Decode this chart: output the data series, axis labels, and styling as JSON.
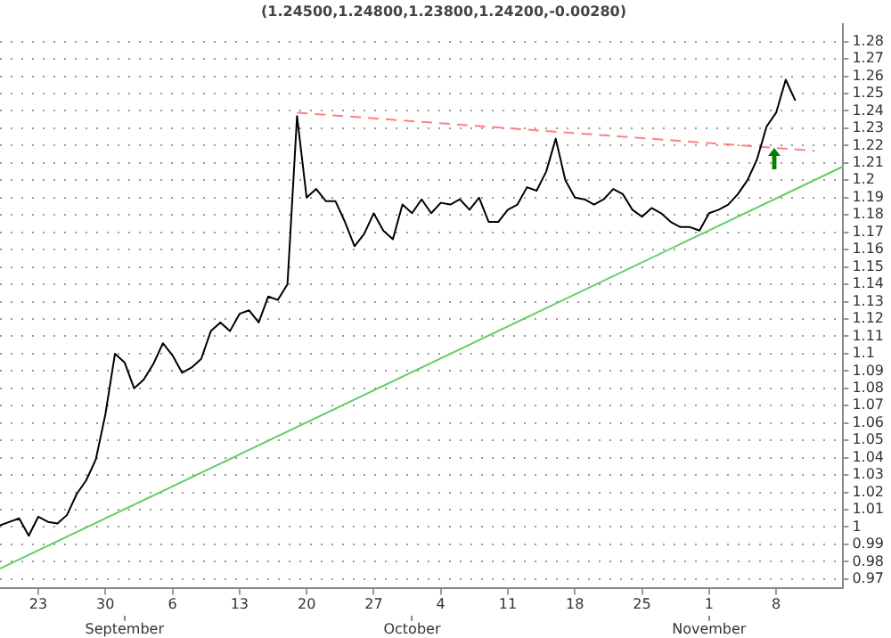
{
  "chart_data": {
    "type": "line",
    "title": "(1.24500,1.24800,1.23800,1.24200,-0.00280)",
    "x": [
      "--08-19",
      "--08-20",
      "--08-21",
      "--08-22",
      "--08-23",
      "--08-24",
      "--08-25",
      "--08-26",
      "--08-27",
      "--08-28",
      "--08-29",
      "--08-30",
      "--08-31",
      "--09-01",
      "--09-02",
      "--09-03",
      "--09-04",
      "--09-05",
      "--09-06",
      "--09-07",
      "--09-08",
      "--09-09",
      "--09-10",
      "--09-11",
      "--09-12",
      "--09-13",
      "--09-14",
      "--09-15",
      "--09-16",
      "--09-17",
      "--09-18",
      "--09-19",
      "--09-20",
      "--09-21",
      "--09-22",
      "--09-23",
      "--09-24",
      "--09-25",
      "--09-26",
      "--09-27",
      "--09-28",
      "--09-29",
      "--09-30",
      "--10-01",
      "--10-02",
      "--10-03",
      "--10-04",
      "--10-05",
      "--10-06",
      "--10-07",
      "--10-08",
      "--10-09",
      "--10-10",
      "--10-11",
      "--10-12",
      "--10-13",
      "--10-14",
      "--10-15",
      "--10-16",
      "--10-17",
      "--10-18",
      "--10-19",
      "--10-20",
      "--10-21",
      "--10-22",
      "--10-23",
      "--10-24",
      "--10-25",
      "--10-26",
      "--10-27",
      "--10-28",
      "--10-29",
      "--10-30",
      "--10-31",
      "--11-01",
      "--11-02",
      "--11-03",
      "--11-04",
      "--11-05",
      "--11-06",
      "--11-07",
      "--11-08",
      "--11-09",
      "--11-10"
    ],
    "series": [
      {
        "color": "#000000",
        "line_style": "solid",
        "values": [
          1.001,
          1.003,
          1.005,
          0.995,
          1.006,
          1.003,
          1.002,
          1.007,
          1.019,
          1.027,
          1.039,
          1.065,
          1.1,
          1.095,
          1.08,
          1.085,
          1.094,
          1.106,
          1.099,
          1.089,
          1.092,
          1.097,
          1.113,
          1.118,
          1.113,
          1.123,
          1.125,
          1.118,
          1.133,
          1.131,
          1.14,
          1.237,
          1.19,
          1.195,
          1.188,
          1.188,
          1.176,
          1.162,
          1.169,
          1.181,
          1.171,
          1.166,
          1.186,
          1.181,
          1.189,
          1.181,
          1.187,
          1.186,
          1.189,
          1.183,
          1.19,
          1.176,
          1.176,
          1.183,
          1.186,
          1.196,
          1.194,
          1.205,
          1.224,
          1.2,
          1.19,
          1.189,
          1.186,
          1.189,
          1.195,
          1.192,
          1.183,
          1.179,
          1.184,
          1.181,
          1.176,
          1.173,
          1.173,
          1.171,
          1.181,
          1.183,
          1.186,
          1.192,
          1.2,
          1.212,
          1.231,
          1.239,
          1.258,
          1.246
        ]
      },
      {
        "color": "#ff8080",
        "line_style": "dashed",
        "x": [
          "--09-19",
          "--11-12"
        ],
        "values": [
          1.239,
          1.217
        ]
      },
      {
        "color": "#66cc66",
        "line_style": "solid",
        "x": [
          "--08-19",
          "--11-15"
        ],
        "values": [
          0.976,
          1.208
        ]
      }
    ],
    "xlim": [
      "--08-19",
      "--11-15"
    ],
    "xticks": [
      {
        "value": "--08-23",
        "label": "23"
      },
      {
        "value": "--08-30",
        "label": "30"
      },
      {
        "value": "--09-06",
        "label": "6"
      },
      {
        "value": "--09-13",
        "label": "13"
      },
      {
        "value": "--09-20",
        "label": "20"
      },
      {
        "value": "--09-27",
        "label": "27"
      },
      {
        "value": "--10-04",
        "label": "4"
      },
      {
        "value": "--10-11",
        "label": "11"
      },
      {
        "value": "--10-18",
        "label": "18"
      },
      {
        "value": "--10-25",
        "label": "25"
      },
      {
        "value": "--11-01",
        "label": "1"
      },
      {
        "value": "--11-08",
        "label": "8"
      }
    ],
    "x2lim": [
      "--08-19",
      "--11-15"
    ],
    "x2ticks": [
      {
        "value": "--09-01",
        "label": "September"
      },
      {
        "value": "--10-01",
        "label": "October"
      },
      {
        "value": "--11-01",
        "label": "November"
      }
    ],
    "ylim": [
      0.965,
      1.29
    ],
    "yticks": [
      0.97,
      0.98,
      0.99,
      1.0,
      1.01,
      1.02,
      1.03,
      1.04,
      1.05,
      1.06,
      1.07,
      1.08,
      1.09,
      1.1,
      1.11,
      1.12,
      1.13,
      1.14,
      1.15,
      1.16,
      1.17,
      1.18,
      1.19,
      1.2,
      1.21,
      1.22,
      1.23,
      1.24,
      1.25,
      1.26,
      1.27,
      1.28
    ],
    "grid": "y",
    "legend": false,
    "marker": "none"
  }
}
